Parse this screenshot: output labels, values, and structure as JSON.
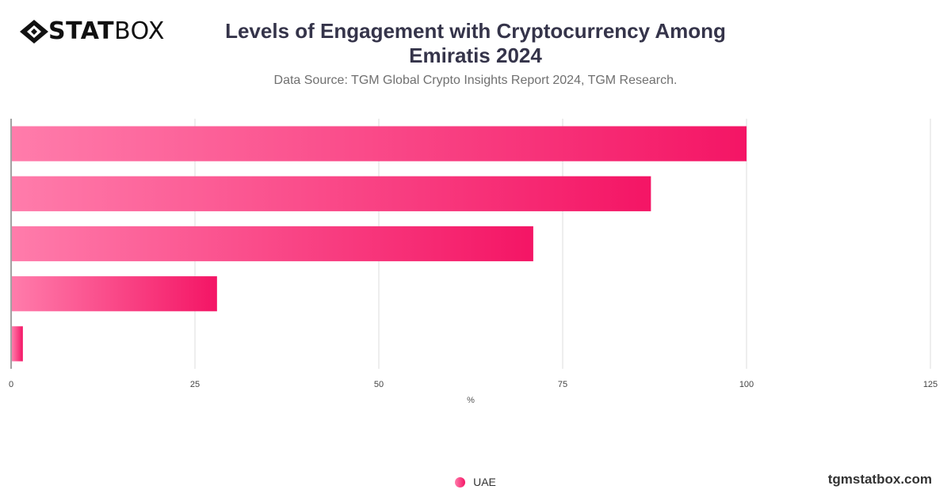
{
  "brand": {
    "logo_bold": "STAT",
    "logo_regular": "BOX",
    "icon": "diamond-logo-icon"
  },
  "title_line1": "Levels of Engagement with Cryptocurrency Among",
  "title_line2": "Emiratis 2024",
  "subtitle": "Data Source: TGM Global Crypto Insights Report 2024, TGM Research.",
  "footer": "tgmstatbox.com",
  "colors": {
    "bar_start": "#ff7cab",
    "bar_end": "#f41565",
    "grid": "#dddddd",
    "axis": "#444444"
  },
  "chart_data": {
    "type": "bar",
    "orientation": "horizontal",
    "categories": [
      "",
      "",
      "",
      "",
      ""
    ],
    "series": [
      {
        "name": "UAE",
        "values": [
          100,
          87,
          71,
          28,
          1.6
        ]
      }
    ],
    "xlabel": "%",
    "xlim": [
      0,
      125
    ],
    "xticks": [
      0,
      25,
      50,
      75,
      100,
      125
    ],
    "grid": true,
    "legend": "bottom-center"
  }
}
